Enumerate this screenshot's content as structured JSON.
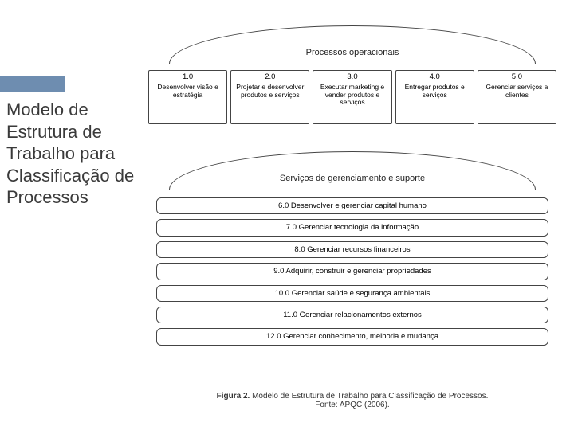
{
  "accent_color": "#6e8db0",
  "title": "Modelo de Estrutura de Trabalho para Classificação de Processos",
  "diagram": {
    "section_top": "Processos operacionais",
    "section_mid": "Serviços de gerenciamento e suporte",
    "op_boxes": [
      {
        "num": "1.0",
        "text": "Desenvolver visão e estratégia"
      },
      {
        "num": "2.0",
        "text": "Projetar e desenvolver produtos e serviços"
      },
      {
        "num": "3.0",
        "text": "Executar marketing e vender produtos e serviços"
      },
      {
        "num": "4.0",
        "text": "Entregar produtos e serviços"
      },
      {
        "num": "5.0",
        "text": "Gerenciar serviços a clientes"
      }
    ],
    "bars": [
      "6.0 Desenvolver e gerenciar capital humano",
      "7.0 Gerenciar tecnologia da informação",
      "8.0 Gerenciar recursos financeiros",
      "9.0 Adquirir, construir e gerenciar propriedades",
      "10.0 Gerenciar saúde e segurança ambientais",
      "11.0 Gerenciar relacionamentos externos",
      "12.0 Gerenciar conhecimento, melhoria e mudança"
    ],
    "caption_label": "Figura 2.",
    "caption_text": "Modelo de Estrutura de Trabalho para Classificação de Processos.",
    "caption_source": "Fonte: APQC (2006)."
  }
}
